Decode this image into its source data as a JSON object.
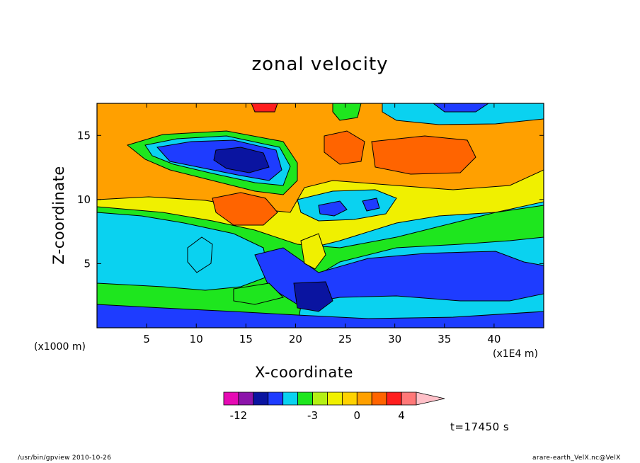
{
  "chart_data": {
    "type": "contour",
    "title": "zonal velocity",
    "xlabel": "X-coordinate",
    "ylabel": "Z-coordinate",
    "x_unit": "(x1E4 m)",
    "y_unit": "(x1000 m)",
    "xlim": [
      0,
      45
    ],
    "ylim": [
      0,
      17.5
    ],
    "x_ticks": [
      5,
      10,
      15,
      20,
      25,
      30,
      35,
      40
    ],
    "y_ticks": [
      5,
      10,
      15
    ],
    "colorbar": {
      "levels": [
        -14,
        -12,
        -10,
        -8,
        -6,
        -4,
        -3,
        -2,
        -1,
        0,
        1,
        2,
        4,
        6,
        8
      ],
      "tick_values": [
        -12,
        -3,
        0,
        4
      ],
      "tick_labels": [
        "-12",
        "-3",
        "0",
        "4"
      ],
      "colors": [
        "#e60ab4",
        "#8c14aa",
        "#0a14a0",
        "#1e3cff",
        "#0ad2f0",
        "#1ee61e",
        "#b4f014",
        "#f0f000",
        "#ffd200",
        "#ffa000",
        "#ff6400",
        "#ff1e1e",
        "#ff7878",
        "#ffc0c8"
      ]
    },
    "time_label": "t=17450 s"
  },
  "footer": {
    "left": "/usr/bin/gpview   2010-10-26",
    "right": "arare-earth_VelX.nc@VelX"
  }
}
